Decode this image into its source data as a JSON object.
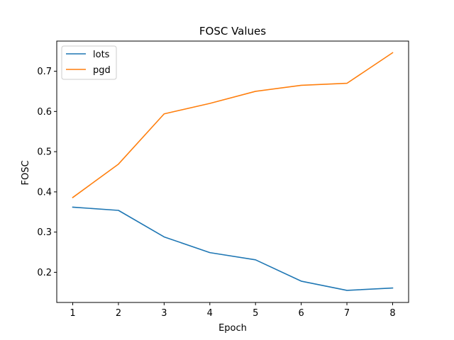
{
  "chart_data": {
    "type": "line",
    "title": "FOSC Values",
    "xlabel": "Epoch",
    "ylabel": "FOSC",
    "x": [
      1,
      2,
      3,
      4,
      5,
      6,
      7,
      8
    ],
    "xticks": [
      "1",
      "2",
      "3",
      "4",
      "5",
      "6",
      "7",
      "8"
    ],
    "yticks": [
      "0.2",
      "0.3",
      "0.4",
      "0.5",
      "0.6",
      "0.7"
    ],
    "ytick_values": [
      0.2,
      0.3,
      0.4,
      0.5,
      0.6,
      0.7
    ],
    "xlim": [
      0.65,
      8.35
    ],
    "ylim": [
      0.125,
      0.775
    ],
    "grid": false,
    "legend_position": "top-left",
    "series": [
      {
        "name": "lots",
        "color": "#1f77b4",
        "values": [
          0.362,
          0.354,
          0.288,
          0.249,
          0.231,
          0.178,
          0.155,
          0.161
        ]
      },
      {
        "name": "pgd",
        "color": "#ff7f0e",
        "values": [
          0.386,
          0.469,
          0.594,
          0.62,
          0.65,
          0.665,
          0.67,
          0.746
        ]
      }
    ]
  }
}
